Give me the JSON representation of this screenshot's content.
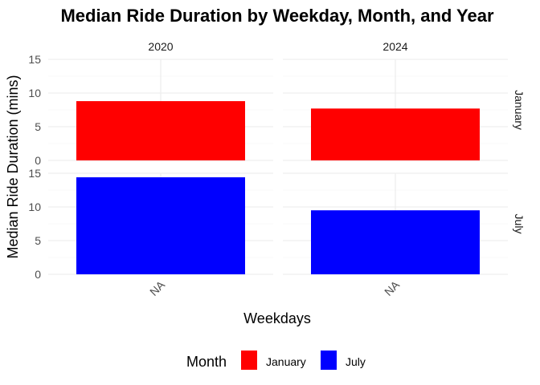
{
  "chart_data": {
    "type": "bar",
    "title": "Median Ride Duration by Weekday, Month, and Year",
    "xlabel": "Weekdays",
    "ylabel": "Median Ride Duration (mins)",
    "categories": [
      "NA"
    ],
    "ylim": [
      0,
      15
    ],
    "yticks": [
      0,
      5,
      10,
      15
    ],
    "grid": true,
    "facet_columns": [
      "2020",
      "2024"
    ],
    "facet_rows": [
      "January",
      "July"
    ],
    "legend": {
      "title": "Month",
      "position": "bottom",
      "entries": [
        {
          "label": "January",
          "color": "#ff0000"
        },
        {
          "label": "July",
          "color": "#0000ff"
        }
      ]
    },
    "panels": [
      {
        "year": "2020",
        "month": "January",
        "color": "#ff0000",
        "values": [
          8.8
        ]
      },
      {
        "year": "2024",
        "month": "January",
        "color": "#ff0000",
        "values": [
          7.7
        ]
      },
      {
        "year": "2020",
        "month": "July",
        "color": "#0000ff",
        "values": [
          14.4
        ]
      },
      {
        "year": "2024",
        "month": "July",
        "color": "#0000ff",
        "values": [
          9.5
        ]
      }
    ]
  }
}
